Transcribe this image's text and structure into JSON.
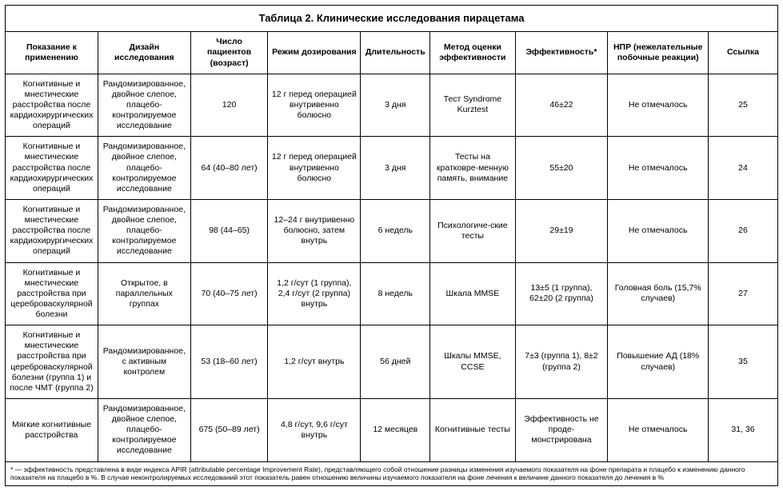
{
  "title": "Таблица 2. Клинические исследования пирацетама",
  "headers": {
    "c1": "Показание к применению",
    "c2": "Дизайн исследования",
    "c3": "Число пациентов (возраст)",
    "c4": "Режим дозирования",
    "c5": "Длительность",
    "c6": "Метод оценки эффективности",
    "c7": "Эффективность*",
    "c8": "НПР (нежелательные побочные реакции)",
    "c9": "Ссылка"
  },
  "rows": [
    {
      "c1": "Когнитивные и мнестические расстройства после кардиохирургических операций",
      "c2": "Рандомизированное, двойное слепое, плацебо-контролируемое исследование",
      "c3": "120",
      "c4": "12 г перед операцией внутривенно болюсно",
      "c5": "3 дня",
      "c6": "Тест Syndrome Kurztest",
      "c7": "46±22",
      "c8": "Не отмечалось",
      "c9": "25"
    },
    {
      "c1": "Когнитивные и мнестические расстройства после кардиохирургических операций",
      "c2": "Рандомизированное, двойное слепое, плацебо-контролируемое исследование",
      "c3": "64 (40–80 лет)",
      "c4": "12 г перед операцией внутривенно болюсно",
      "c5": "3 дня",
      "c6": "Тесты на кратковре-менную память, внимание",
      "c7": "55±20",
      "c8": "Не отмечалось",
      "c9": "24"
    },
    {
      "c1": "Когнитивные и мнестические расстройства после кардиохирургических операций",
      "c2": "Рандомизированное, двойное слепое, плацебо-контролируемое исследование",
      "c3": "98 (44–65)",
      "c4": "12–24 г внутривенно болюсно, затем внутрь",
      "c5": "6 недель",
      "c6": "Психологиче-ские тесты",
      "c7": "29±19",
      "c8": "Не отмечалось",
      "c9": "26"
    },
    {
      "c1": "Когнитивные и мнестические расстройства при цереброваскулярной болезни",
      "c2": "Открытое, в параллельных группах",
      "c3": "70 (40–75 лет)",
      "c4": "1,2 г/сут (1 группа), 2,4 г/сут (2 группа) внутрь",
      "c5": "8 недель",
      "c6": "Шкала MMSE",
      "c7": "13±5 (1 группа), 62±20 (2 группа)",
      "c8": "Головная боль (15,7% случаев)",
      "c9": "27"
    },
    {
      "c1": "Когнитивные и мнестические расстройства при цереброваскулярной болезни (группа 1) и после ЧМТ (группа 2)",
      "c2": "Рандомизированное, с активным контролем",
      "c3": "53 (18–60 лет)",
      "c4": "1,2 г/сут внутрь",
      "c5": "56 дней",
      "c6": "Шкалы MMSE, CCSE",
      "c7": "7±3 (группа 1), 8±2 (группа 2)",
      "c8": "Повышение АД (18% случаев)",
      "c9": "35"
    },
    {
      "c1": "Мягкие когнитивные расстройства",
      "c2": "Рандомизированное, двойное слепое, плацебо-контролируемое исследование",
      "c3": "675 (50–89 лет)",
      "c4": "4,8 г/сут, 9,6 г/сут внутрь",
      "c5": "12 месяцев",
      "c6": "Когнитивные тесты",
      "c7": "Эффективность не проде-монстрирована",
      "c8": "Не отмечалось",
      "c9": "31, 36"
    }
  ],
  "footnote": "* — эффективность представлена в виде индекса APIR (attributable percentage Improvement Rate), представляющего собой отношение разницы изменения изучаемого показателя на фоне препарата и плацебо к изменению данного показателя на плацебо в %. В случае неконтролируемых исследований этот показатель равен отношению величины изучаемого показателя на фоне лечения к величине данного показателя до лечения в %"
}
